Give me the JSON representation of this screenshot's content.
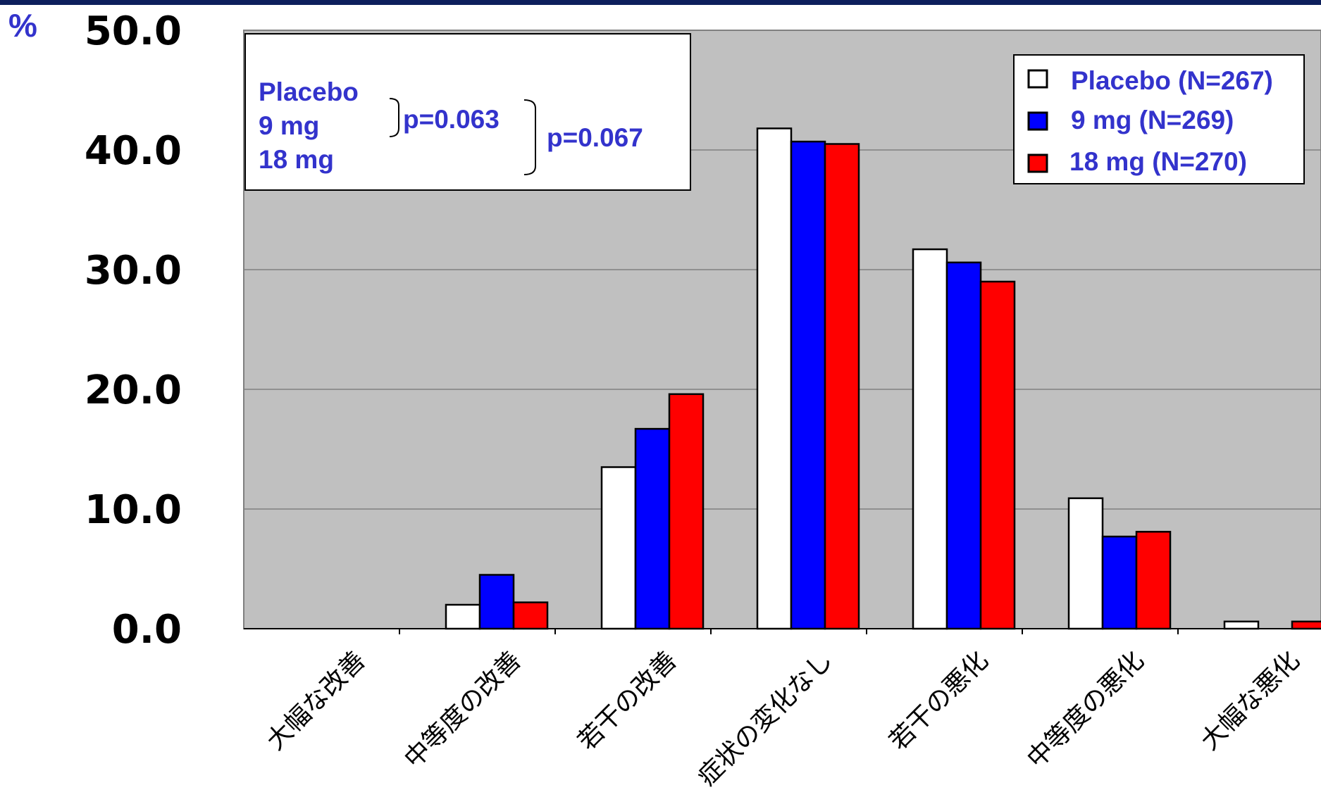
{
  "chart_data": {
    "type": "bar",
    "ylabel": "%",
    "ylim": [
      0,
      50
    ],
    "yticks": [
      "0.0",
      "10.0",
      "20.0",
      "30.0",
      "40.0",
      "50.0"
    ],
    "categories": [
      "大幅な改善",
      "中等度の改善",
      "若干の改善",
      "症状の変化なし",
      "若干の悪化",
      "中等度の悪化",
      "大幅な悪化"
    ],
    "series": [
      {
        "name": "Placebo (N=267)",
        "color": "#ffffff",
        "values": [
          0,
          2.0,
          13.5,
          41.8,
          31.7,
          10.9,
          0.6
        ]
      },
      {
        "name": "9 mg (N=269)",
        "color": "#0000ff",
        "values": [
          0,
          4.5,
          16.7,
          40.7,
          30.6,
          7.7,
          0
        ]
      },
      {
        "name": "18 mg (N=270)",
        "color": "#ff0000",
        "values": [
          0,
          2.2,
          19.6,
          40.5,
          29.0,
          8.1,
          0.6
        ]
      }
    ],
    "grid": true,
    "legend_position": "top-right",
    "plot_background": "#c0c0c0"
  },
  "annotation": {
    "groups": [
      "Placebo",
      "9 mg",
      "18 mg"
    ],
    "p_values": [
      "p=0.063",
      "p=0.067"
    ]
  }
}
